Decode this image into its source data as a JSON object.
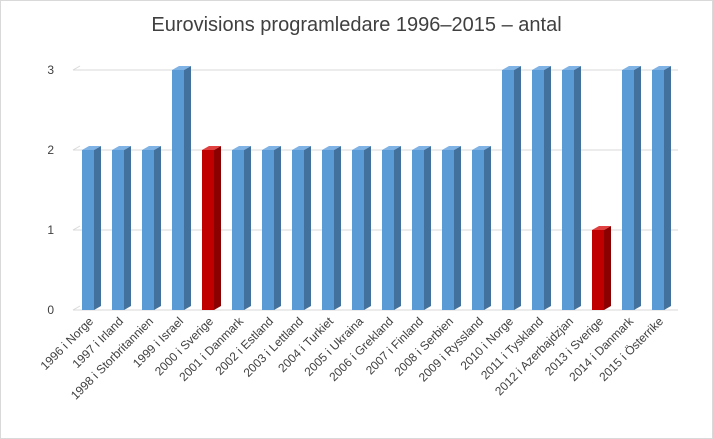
{
  "chart_data": {
    "type": "bar",
    "title": "Eurovisions programledare 1996–2015 – antal",
    "xlabel": "",
    "ylabel": "",
    "ylim": [
      0,
      3
    ],
    "yticks": [
      0,
      1,
      2,
      3
    ],
    "grid": true,
    "legend": "none",
    "categories": [
      "1996 i Norge",
      "1997 i Irland",
      "1998 i Storbritannien",
      "1999 i Israel",
      "2000 i Sverige",
      "2001 i Danmark",
      "2002 i Estland",
      "2003 i Lettland",
      "2004 i Turkiet",
      "2005 i Ukraina",
      "2006 i Grekland",
      "2007 i Finland",
      "2008 i Serbien",
      "2009 i Ryssland",
      "2010 i Norge",
      "2011 i Tyskland",
      "2012 i Azerbajdzjan",
      "2013 i Sverige",
      "2014 i Danmark",
      "2015 i Österrike"
    ],
    "values": [
      2,
      2,
      2,
      3,
      2,
      2,
      2,
      2,
      2,
      2,
      2,
      2,
      2,
      2,
      3,
      3,
      3,
      1,
      3,
      3
    ],
    "highlight_categories": [
      "2000 i Sverige",
      "2013 i Sverige"
    ],
    "colors": {
      "bar": "#5b9bd5",
      "bar_side": "#41719c",
      "bar_top": "#7fb2e5",
      "highlight": "#c00000",
      "highlight_side": "#8b0000",
      "highlight_top": "#e04040",
      "grid": "#d9d9d9"
    }
  }
}
